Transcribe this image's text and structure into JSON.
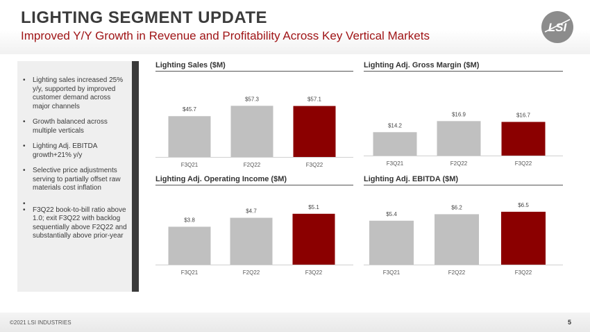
{
  "header": {
    "title": "LIGHTING SEGMENT UPDATE",
    "subtitle": "Improved Y/Y Growth in Revenue and Profitability Across Key Vertical Markets",
    "logo_text": "LSI"
  },
  "sidebar": {
    "bullets": [
      "Lighting sales increased 25% y/y, supported by improved customer demand across major channels",
      "Growth balanced across multiple verticals",
      "Lighting Adj. EBITDA growth+21% y/y",
      "Selective price adjustments serving to partially offset raw materials cost inflation",
      "",
      "F3Q22 book-to-bill ratio above 1.0; exit F3Q22 with backlog sequentially above F2Q22 and substantially above prior-year"
    ]
  },
  "colors": {
    "accent": "#a01517",
    "bar_gray": "#c0c0c0",
    "bar_highlight": "#8b0000",
    "sidebar_bg": "#efefef",
    "sidebar_bar": "#3a3a3a"
  },
  "chart_data": [
    {
      "type": "bar",
      "title": "Lighting Sales ($M)",
      "categories": [
        "F3Q21",
        "F2Q22",
        "F3Q22"
      ],
      "values": [
        45.7,
        57.3,
        57.1
      ],
      "labels": [
        "$45.7",
        "$57.3",
        "$57.1"
      ],
      "highlight_index": 2,
      "ylim": [
        0,
        70
      ]
    },
    {
      "type": "bar",
      "title": "Lighting Adj. Gross Margin ($M)",
      "categories": [
        "F3Q21",
        "F2Q22",
        "F3Q22"
      ],
      "values": [
        14.2,
        16.9,
        16.7
      ],
      "labels": [
        "$14.2",
        "$16.9",
        "$16.7"
      ],
      "highlight_index": 2,
      "ylim": [
        8.5,
        20
      ]
    },
    {
      "type": "bar",
      "title": "Lighting Adj. Operating Income ($M)",
      "categories": [
        "F3Q21",
        "F2Q22",
        "F3Q22"
      ],
      "values": [
        3.8,
        4.7,
        5.1
      ],
      "labels": [
        "$3.8",
        "$4.7",
        "$5.1"
      ],
      "highlight_index": 2,
      "ylim": [
        0,
        6.2
      ]
    },
    {
      "type": "bar",
      "title": "Lighting Adj. EBITDA ($M)",
      "categories": [
        "F3Q21",
        "F2Q22",
        "F3Q22"
      ],
      "values": [
        5.4,
        6.2,
        6.5
      ],
      "labels": [
        "$5.4",
        "$6.2",
        "$6.5"
      ],
      "highlight_index": 2,
      "ylim": [
        0,
        7.6
      ]
    }
  ],
  "footer": {
    "copyright": "©2021 LSI INDUSTRIES",
    "page_number": "5"
  }
}
